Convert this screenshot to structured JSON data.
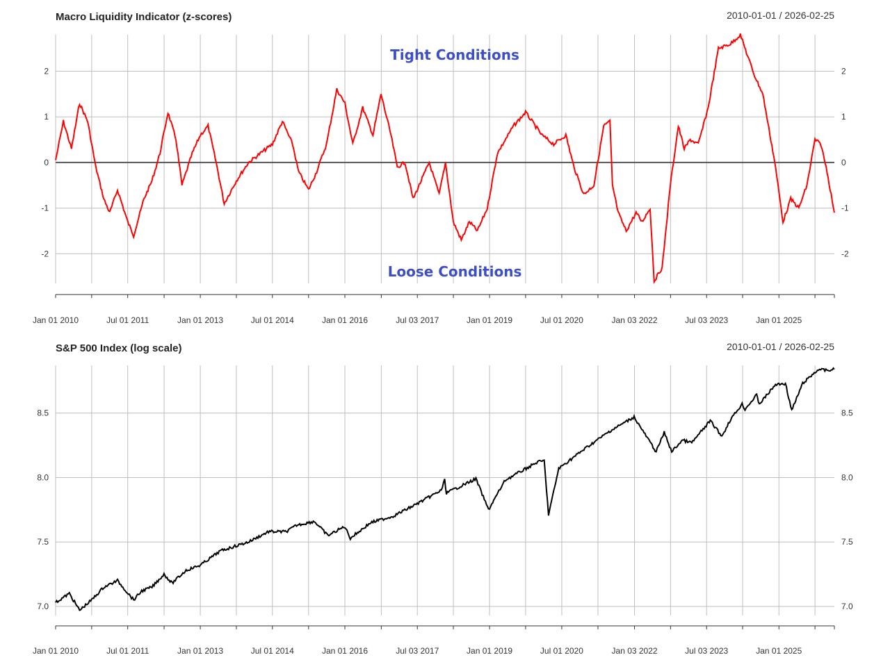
{
  "colors": {
    "annotation": "#3c4fc4",
    "liquidity_line": "#ff0000",
    "sp500_line": "#000000",
    "grid": "#bdbdbd",
    "zero_line": "#555555"
  },
  "x_axis": {
    "labels": [
      "Jan 01 2010",
      "Jul 01 2011",
      "Jan 01 2013",
      "Jul 01 2014",
      "Jan 01 2016",
      "Jul 03 2017",
      "Jan 01 2019",
      "Jul 01 2020",
      "Jan 03 2022",
      "Jul 03 2023",
      "Jan 01 2025"
    ],
    "label_dates": [
      "2010-01-01",
      "2011-07-01",
      "2013-01-01",
      "2014-07-01",
      "2016-01-01",
      "2017-07-03",
      "2019-01-01",
      "2020-07-01",
      "2022-01-03",
      "2023-07-03",
      "2025-01-01"
    ],
    "minor_dates": [
      "2010-10-01",
      "2012-04-02",
      "2013-10-01",
      "2015-04-01",
      "2016-10-03",
      "2018-04-02",
      "2019-10-01",
      "2021-04-01",
      "2022-10-03",
      "2024-04-01",
      "2025-10-01"
    ],
    "start": "2010-01-01",
    "end": "2026-02-25"
  },
  "chart_data": [
    {
      "type": "line",
      "title": "Macro Liquidity Indicator (z-scores)",
      "date_range": "2010-01-01 / 2026-02-25",
      "yticks": [
        "2",
        "1",
        "0",
        "-1",
        "-2"
      ],
      "ylim": [
        -2.65,
        2.8
      ],
      "reference_line": 0,
      "annotations": {
        "top": "Tight Conditions",
        "bottom": "Loose Conditions"
      },
      "grid": true,
      "series": [
        {
          "values": [
            [
              "2010-01-01",
              0.05
            ],
            [
              "2010-03-01",
              0.9
            ],
            [
              "2010-05-01",
              0.3
            ],
            [
              "2010-07-01",
              1.3
            ],
            [
              "2010-09-01",
              0.9
            ],
            [
              "2010-11-01",
              -0.1
            ],
            [
              "2011-01-01",
              -0.8
            ],
            [
              "2011-02-15",
              -1.1
            ],
            [
              "2011-04-15",
              -0.6
            ],
            [
              "2011-07-01",
              -1.3
            ],
            [
              "2011-08-15",
              -1.6
            ],
            [
              "2011-11-01",
              -0.8
            ],
            [
              "2012-01-01",
              -0.4
            ],
            [
              "2012-03-01",
              0.2
            ],
            [
              "2012-05-01",
              1.1
            ],
            [
              "2012-07-01",
              0.5
            ],
            [
              "2012-08-15",
              -0.5
            ],
            [
              "2012-11-01",
              0.2
            ],
            [
              "2013-01-01",
              0.6
            ],
            [
              "2013-03-01",
              0.8
            ],
            [
              "2013-05-01",
              0.0
            ],
            [
              "2013-07-01",
              -0.9
            ],
            [
              "2013-10-01",
              -0.4
            ],
            [
              "2014-01-01",
              0.0
            ],
            [
              "2014-04-01",
              0.2
            ],
            [
              "2014-07-01",
              0.4
            ],
            [
              "2014-09-15",
              0.9
            ],
            [
              "2014-12-01",
              0.4
            ],
            [
              "2015-01-15",
              -0.2
            ],
            [
              "2015-04-01",
              -0.6
            ],
            [
              "2015-06-01",
              -0.2
            ],
            [
              "2015-08-15",
              0.4
            ],
            [
              "2015-11-01",
              1.6
            ],
            [
              "2016-01-01",
              1.3
            ],
            [
              "2016-03-01",
              0.4
            ],
            [
              "2016-05-15",
              1.2
            ],
            [
              "2016-08-01",
              0.6
            ],
            [
              "2016-10-01",
              1.5
            ],
            [
              "2016-12-15",
              0.6
            ],
            [
              "2017-02-01",
              -0.1
            ],
            [
              "2017-04-01",
              0.0
            ],
            [
              "2017-06-01",
              -0.8
            ],
            [
              "2017-08-01",
              -0.4
            ],
            [
              "2017-10-01",
              0.0
            ],
            [
              "2017-12-15",
              -0.7
            ],
            [
              "2018-02-01",
              0.0
            ],
            [
              "2018-04-01",
              -1.3
            ],
            [
              "2018-06-01",
              -1.7
            ],
            [
              "2018-08-01",
              -1.3
            ],
            [
              "2018-10-01",
              -1.5
            ],
            [
              "2018-12-15",
              -1.0
            ],
            [
              "2019-03-01",
              0.2
            ],
            [
              "2019-07-01",
              0.8
            ],
            [
              "2019-10-01",
              1.1
            ],
            [
              "2020-02-01",
              0.6
            ],
            [
              "2020-05-01",
              0.4
            ],
            [
              "2020-08-01",
              0.6
            ],
            [
              "2020-10-01",
              -0.1
            ],
            [
              "2020-12-15",
              -0.7
            ],
            [
              "2021-03-01",
              -0.5
            ],
            [
              "2021-05-15",
              0.8
            ],
            [
              "2021-07-01",
              0.9
            ],
            [
              "2021-07-20",
              -0.5
            ],
            [
              "2021-09-01",
              -1.1
            ],
            [
              "2021-11-01",
              -1.5
            ],
            [
              "2022-01-15",
              -1.1
            ],
            [
              "2022-03-01",
              -1.3
            ],
            [
              "2022-05-01",
              -1.0
            ],
            [
              "2022-06-01",
              -2.6
            ],
            [
              "2022-08-01",
              -2.3
            ],
            [
              "2022-10-01",
              -0.5
            ],
            [
              "2022-12-01",
              0.8
            ],
            [
              "2023-01-15",
              0.3
            ],
            [
              "2023-03-01",
              0.5
            ],
            [
              "2023-05-01",
              0.4
            ],
            [
              "2023-07-15",
              1.2
            ],
            [
              "2023-10-01",
              2.5
            ],
            [
              "2024-01-01",
              2.6
            ],
            [
              "2024-03-15",
              2.8
            ],
            [
              "2024-05-01",
              2.4
            ],
            [
              "2024-07-01",
              1.9
            ],
            [
              "2024-09-01",
              1.5
            ],
            [
              "2024-12-01",
              0.0
            ],
            [
              "2025-02-01",
              -1.3
            ],
            [
              "2025-04-01",
              -0.8
            ],
            [
              "2025-06-01",
              -1.0
            ],
            [
              "2025-08-01",
              -0.5
            ],
            [
              "2025-10-01",
              0.5
            ],
            [
              "2025-11-15",
              0.4
            ],
            [
              "2026-01-01",
              -0.2
            ],
            [
              "2026-02-25",
              -1.1
            ]
          ]
        }
      ]
    },
    {
      "type": "line",
      "title": "S&P 500 Index (log scale)",
      "date_range": "2010-01-01 / 2026-02-25",
      "yticks": [
        "8.5",
        "8.0",
        "7.5",
        "7.0"
      ],
      "ylim": [
        6.93,
        8.87
      ],
      "grid": true,
      "series": [
        {
          "values": [
            [
              "2010-01-01",
              7.03
            ],
            [
              "2010-04-15",
              7.1
            ],
            [
              "2010-07-01",
              6.97
            ],
            [
              "2010-10-01",
              7.05
            ],
            [
              "2011-01-01",
              7.15
            ],
            [
              "2011-04-15",
              7.2
            ],
            [
              "2011-08-15",
              7.05
            ],
            [
              "2011-10-15",
              7.12
            ],
            [
              "2012-01-01",
              7.15
            ],
            [
              "2012-04-01",
              7.25
            ],
            [
              "2012-06-01",
              7.18
            ],
            [
              "2012-09-15",
              7.28
            ],
            [
              "2013-01-01",
              7.32
            ],
            [
              "2013-06-01",
              7.43
            ],
            [
              "2013-12-31",
              7.5
            ],
            [
              "2014-06-01",
              7.58
            ],
            [
              "2014-10-15",
              7.58
            ],
            [
              "2014-12-31",
              7.63
            ],
            [
              "2015-05-15",
              7.66
            ],
            [
              "2015-08-25",
              7.55
            ],
            [
              "2015-12-31",
              7.62
            ],
            [
              "2016-02-11",
              7.53
            ],
            [
              "2016-07-15",
              7.65
            ],
            [
              "2016-12-31",
              7.7
            ],
            [
              "2017-06-01",
              7.78
            ],
            [
              "2017-12-31",
              7.9
            ],
            [
              "2018-01-26",
              7.98
            ],
            [
              "2018-02-08",
              7.88
            ],
            [
              "2018-09-20",
              7.99
            ],
            [
              "2018-12-24",
              7.75
            ],
            [
              "2019-04-30",
              7.98
            ],
            [
              "2019-12-31",
              8.12
            ],
            [
              "2020-02-19",
              8.13
            ],
            [
              "2020-03-23",
              7.71
            ],
            [
              "2020-06-08",
              8.07
            ],
            [
              "2020-12-31",
              8.23
            ],
            [
              "2021-06-30",
              8.36
            ],
            [
              "2021-12-31",
              8.47
            ],
            [
              "2022-03-08",
              8.36
            ],
            [
              "2022-06-16",
              8.2
            ],
            [
              "2022-08-16",
              8.35
            ],
            [
              "2022-10-12",
              8.2
            ],
            [
              "2022-12-31",
              8.29
            ],
            [
              "2023-03-13",
              8.27
            ],
            [
              "2023-07-31",
              8.44
            ],
            [
              "2023-10-27",
              8.32
            ],
            [
              "2023-12-31",
              8.45
            ],
            [
              "2024-03-28",
              8.57
            ],
            [
              "2024-04-19",
              8.53
            ],
            [
              "2024-07-16",
              8.64
            ],
            [
              "2024-08-05",
              8.57
            ],
            [
              "2024-12-06",
              8.72
            ],
            [
              "2025-02-19",
              8.73
            ],
            [
              "2025-04-08",
              8.52
            ],
            [
              "2025-06-30",
              8.73
            ],
            [
              "2025-10-28",
              8.84
            ],
            [
              "2025-12-31",
              8.83
            ],
            [
              "2026-02-25",
              8.84
            ]
          ]
        }
      ]
    }
  ]
}
